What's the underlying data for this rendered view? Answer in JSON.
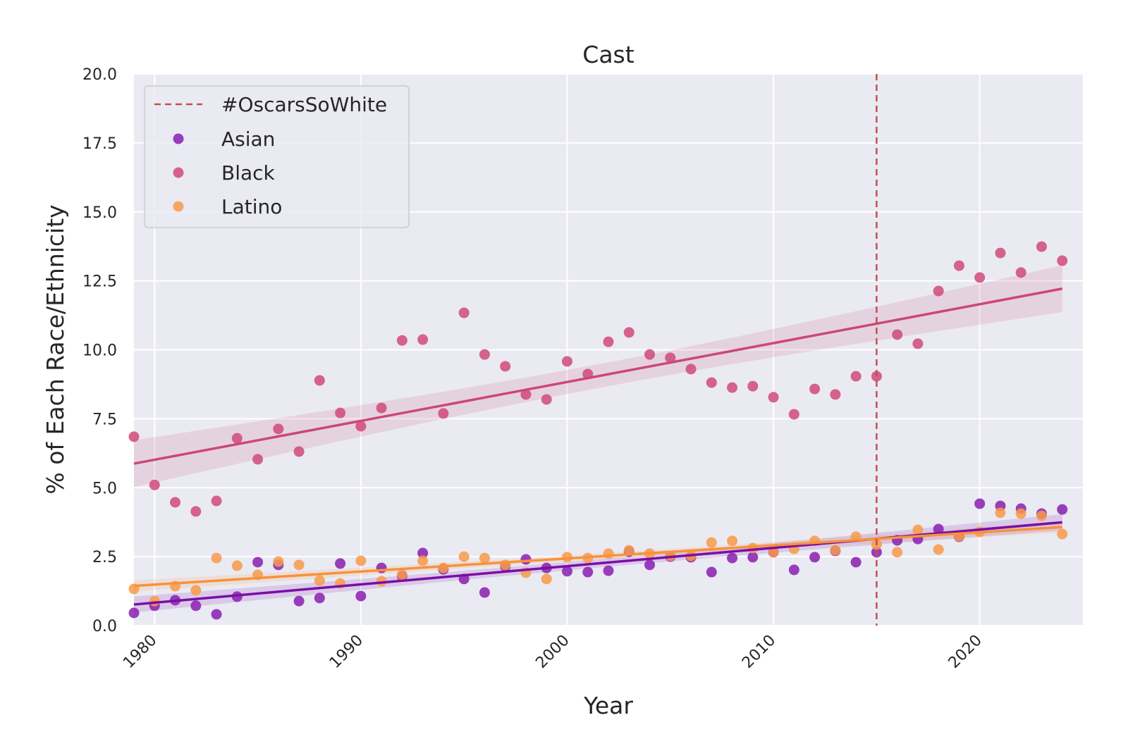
{
  "chart_data": {
    "type": "scatter",
    "title": "Cast",
    "xlabel": "Year",
    "ylabel": "% of Each Race/Ethnicity",
    "xlim": [
      1979,
      2025
    ],
    "ylim": [
      0,
      20
    ],
    "x_ticks": [
      "1980",
      "1990",
      "2000",
      "2010",
      "2020"
    ],
    "y_ticks": [
      "0.0",
      "2.5",
      "5.0",
      "7.5",
      "10.0",
      "12.5",
      "15.0",
      "17.5",
      "20.0"
    ],
    "grid": true,
    "legend_placement": "top-left",
    "regression_lines": true,
    "confidence_bands": true,
    "reference_line": {
      "x": 2015,
      "label": "#OscarsSoWhite",
      "color": "#c44e52",
      "style": "dashed"
    },
    "x": [
      1979,
      1980,
      1981,
      1982,
      1983,
      1984,
      1985,
      1986,
      1987,
      1988,
      1989,
      1990,
      1991,
      1992,
      1993,
      1994,
      1995,
      1996,
      1997,
      1998,
      1999,
      2000,
      2001,
      2002,
      2003,
      2004,
      2005,
      2006,
      2007,
      2008,
      2009,
      2010,
      2011,
      2012,
      2013,
      2014,
      2015,
      2016,
      2017,
      2018,
      2019,
      2020,
      2021,
      2022,
      2023,
      2024
    ],
    "series": [
      {
        "name": "Asian",
        "color": "#8a1fb0",
        "line_color": "#7a0ea6",
        "values": [
          0.46,
          0.72,
          0.92,
          0.72,
          0.41,
          1.05,
          2.3,
          2.2,
          0.89,
          1.0,
          2.25,
          1.07,
          2.09,
          1.79,
          2.63,
          2.04,
          1.69,
          1.2,
          2.15,
          2.4,
          2.09,
          1.97,
          1.94,
          1.99,
          2.68,
          2.2,
          2.5,
          2.48,
          1.94,
          2.45,
          2.48,
          2.66,
          2.02,
          2.48,
          2.71,
          2.3,
          2.66,
          3.09,
          3.14,
          3.5,
          3.22,
          4.42,
          4.34,
          4.24,
          4.06,
          4.21
        ]
      },
      {
        "name": "Black",
        "color": "#d04a78",
        "line_color": "#cc4778",
        "values": [
          6.85,
          5.1,
          4.47,
          4.14,
          4.52,
          6.79,
          6.03,
          7.13,
          6.31,
          8.89,
          7.71,
          7.23,
          7.89,
          10.34,
          10.37,
          7.69,
          11.34,
          9.83,
          9.4,
          8.38,
          8.2,
          9.58,
          9.12,
          10.29,
          10.63,
          9.83,
          9.71,
          9.3,
          8.81,
          8.63,
          8.68,
          8.28,
          7.66,
          8.58,
          8.38,
          9.04,
          9.04,
          10.55,
          10.22,
          12.13,
          13.05,
          12.62,
          13.51,
          12.8,
          13.74,
          13.23
        ]
      },
      {
        "name": "Latino",
        "color": "#f89a4a",
        "line_color": "#f8913a",
        "values": [
          1.33,
          0.89,
          1.43,
          1.28,
          2.45,
          2.17,
          1.84,
          2.32,
          2.2,
          1.63,
          1.53,
          2.35,
          1.61,
          1.84,
          2.35,
          2.09,
          2.5,
          2.45,
          2.2,
          1.92,
          1.69,
          2.48,
          2.45,
          2.61,
          2.73,
          2.61,
          2.53,
          2.53,
          3.01,
          3.07,
          2.81,
          2.66,
          2.78,
          3.07,
          2.73,
          3.22,
          2.94,
          2.66,
          3.47,
          2.76,
          3.24,
          3.4,
          4.09,
          4.06,
          3.98,
          3.32
        ]
      }
    ]
  }
}
